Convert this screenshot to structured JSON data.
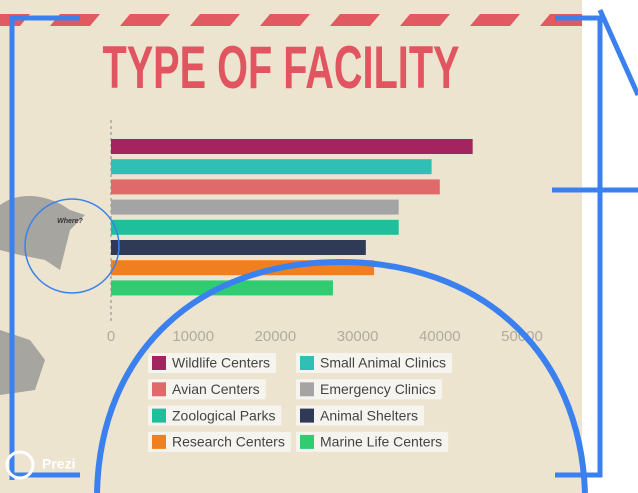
{
  "chart_data": {
    "type": "bar",
    "orientation": "horizontal",
    "title": "TYPE OF FACILITY",
    "categories": [
      "Wildlife Centers",
      "Small Animal Clinics",
      "Avian Centers",
      "Emergency Clinics",
      "Zoological Parks",
      "Animal Shelters",
      "Research Centers",
      "Marine Life Centers"
    ],
    "values": [
      44000,
      39000,
      40000,
      35000,
      35000,
      31000,
      32000,
      27000
    ],
    "colors": [
      "#a3245e",
      "#2fbfb4",
      "#e06a6a",
      "#a4a4a4",
      "#1fbf9c",
      "#2f3b56",
      "#f0801f",
      "#2fcc72"
    ],
    "xlim": [
      0,
      50000
    ],
    "xticks": [
      0,
      10000,
      20000,
      30000,
      40000,
      50000
    ],
    "legend": "bottom",
    "legend_columns": 2,
    "annotations": [
      "Where?",
      "Prezi"
    ]
  }
}
